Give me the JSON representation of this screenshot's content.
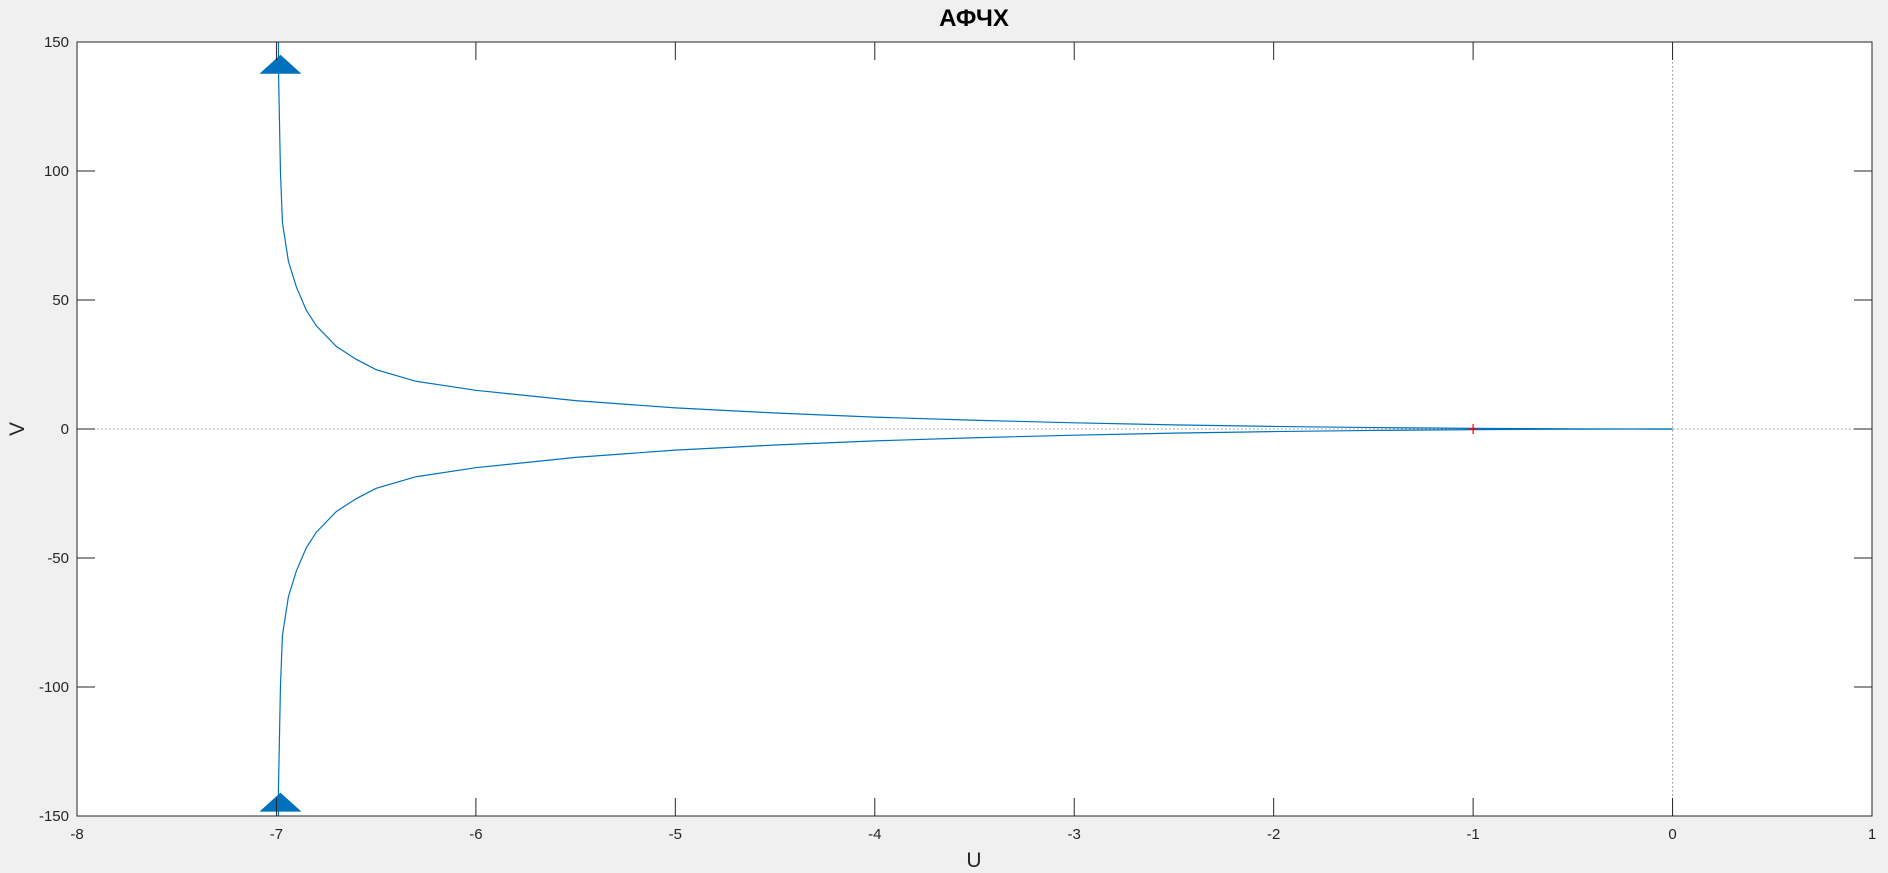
{
  "figure": {
    "background": "#f0f0f0",
    "axes_background": "#ffffff",
    "axis_color": "#262626",
    "line_color": "#0072bd"
  },
  "chart_data": {
    "type": "line",
    "title": "АФЧХ",
    "xlabel": "U",
    "ylabel": "V",
    "xlim": [
      -8,
      1
    ],
    "ylim": [
      -150,
      150
    ],
    "xticks": [
      -8,
      -7,
      -6,
      -5,
      -4,
      -3,
      -2,
      -1,
      0,
      1
    ],
    "yticks": [
      -150,
      -100,
      -50,
      0,
      50,
      100,
      150
    ],
    "grid": false,
    "zero_lines": true,
    "critical_point": {
      "x": -1,
      "y": 0,
      "marker": "+",
      "color": "#ff0000"
    },
    "arrows": [
      {
        "x": -6.98,
        "y": 140,
        "direction": "up"
      },
      {
        "x": -6.98,
        "y": -146,
        "direction": "up"
      }
    ],
    "series": [
      {
        "style": "solid",
        "x": [
          -6.99,
          -6.99,
          -6.98,
          -6.97,
          -6.94,
          -6.9,
          -6.85,
          -6.8,
          -6.7,
          -6.6,
          -6.5,
          -6.3,
          -6.0,
          -5.5,
          -5.0,
          -4.5,
          -4.0,
          -3.5,
          -3.0,
          -2.5,
          -2.0,
          -1.5,
          -1.0,
          -0.5,
          -0.2,
          0.0
        ],
        "y": [
          150,
          140,
          100,
          80,
          65,
          55,
          46,
          40,
          32,
          27,
          23,
          18.5,
          15,
          11,
          8.2,
          6.2,
          4.6,
          3.4,
          2.4,
          1.6,
          1.0,
          0.55,
          0.25,
          0.08,
          0.02,
          0
        ]
      },
      {
        "style": "solid",
        "x": [
          -6.99,
          -6.99,
          -6.98,
          -6.97,
          -6.94,
          -6.9,
          -6.85,
          -6.8,
          -6.7,
          -6.6,
          -6.5,
          -6.3,
          -6.0,
          -5.5,
          -5.0,
          -4.5,
          -4.0,
          -3.5,
          -3.0,
          -2.5,
          -2.0,
          -1.5,
          -1.0,
          -0.5,
          -0.2,
          0.0
        ],
        "y": [
          -150,
          -140,
          -100,
          -80,
          -65,
          -55,
          -46,
          -40,
          -32,
          -27,
          -23,
          -18.5,
          -15,
          -11,
          -8.2,
          -6.2,
          -4.6,
          -3.4,
          -2.4,
          -1.6,
          -1.0,
          -0.55,
          -0.25,
          -0.08,
          -0.02,
          0
        ]
      }
    ]
  }
}
